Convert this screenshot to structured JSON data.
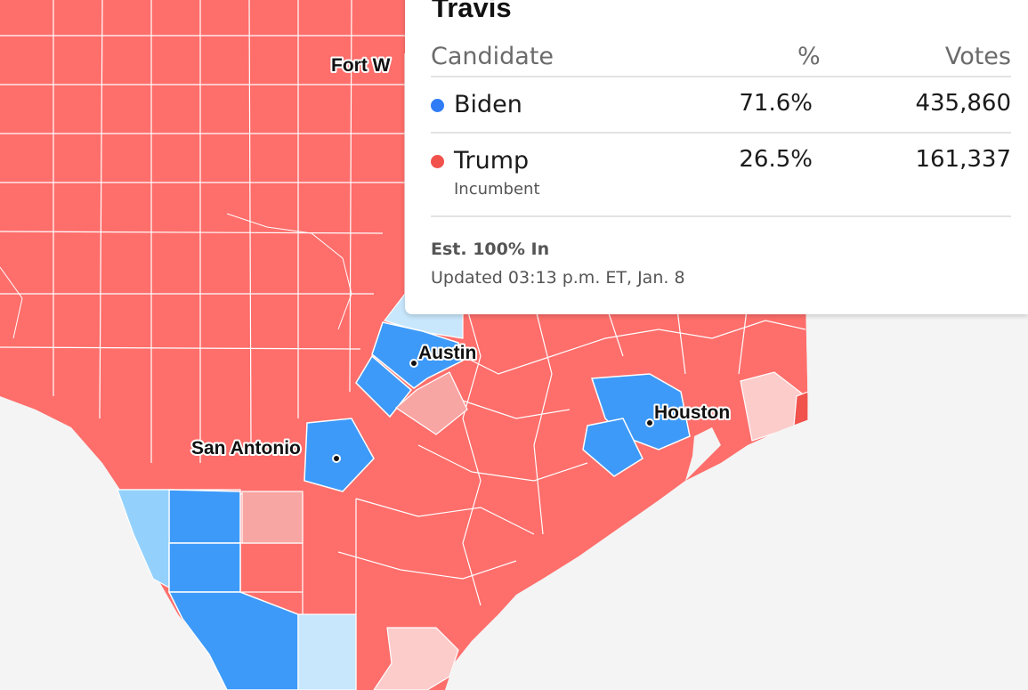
{
  "colors": {
    "biden": "#2f7cf6",
    "trump": "#f1524c",
    "strong_rep": "#fe6e6b",
    "lean_rep": "#f8a6a3",
    "light_rep": "#fccccb",
    "strong_dem": "#3d9af9",
    "lean_dem": "#93d1fc",
    "light_dem": "#c8e7fc",
    "border": "#ffffff",
    "background": "#f4f4f4"
  },
  "map": {
    "cities": [
      {
        "name": "Fort Worth",
        "label": "Fort W"
      },
      {
        "name": "Austin",
        "label": "Austin"
      },
      {
        "name": "San Antonio",
        "label": "San Antonio"
      },
      {
        "name": "Houston",
        "label": "Houston"
      }
    ]
  },
  "popup": {
    "county": "Travis",
    "headers": {
      "candidate": "Candidate",
      "percent": "%",
      "votes": "Votes"
    },
    "candidates": [
      {
        "name": "Biden",
        "percent": "71.6%",
        "votes": "435,860",
        "color_key": "biden",
        "note": ""
      },
      {
        "name": "Trump",
        "percent": "26.5%",
        "votes": "161,337",
        "color_key": "trump",
        "note": "Incumbent"
      }
    ],
    "reporting": "Est. 100% In",
    "updated": "Updated 03:13 p.m. ET, Jan. 8"
  }
}
